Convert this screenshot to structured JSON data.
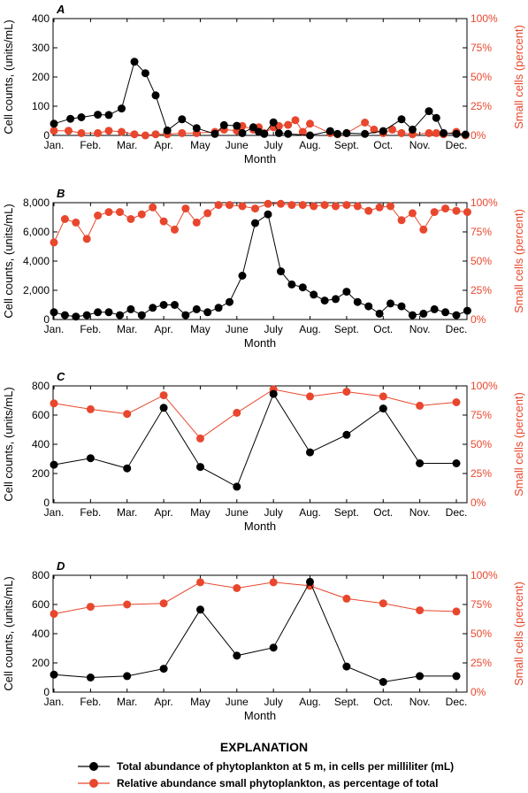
{
  "colors": {
    "total": "#000000",
    "small": "#e8472d"
  },
  "chart_data": [
    {
      "type": "line",
      "panel_label": "A",
      "xlabel": "Month",
      "ylabel_left": "Cell counts, (units/mL)",
      "ylabel_right": "Small cells (percent)",
      "x_ticks": [
        "Jan.",
        "Feb.",
        "Mar.",
        "Apr.",
        "May",
        "June",
        "July",
        "Aug.",
        "Sept.",
        "Oct.",
        "Nov.",
        "Dec."
      ],
      "y_left_ticks": [
        "0",
        "100",
        "200",
        "300",
        "400"
      ],
      "y_right_ticks": [
        "0%",
        "25%",
        "50%",
        "75%",
        "100%"
      ],
      "ylim_left": [
        0,
        400
      ],
      "ylim_right": [
        0,
        100
      ],
      "xlim": [
        0,
        11.3
      ],
      "series": [
        {
          "key": "total",
          "axis": "left",
          "x": [
            0,
            0.45,
            0.75,
            1.2,
            1.5,
            1.85,
            2.2,
            2.5,
            2.78,
            3.1,
            3.5,
            3.9,
            4.4,
            4.65,
            5.0,
            5.15,
            5.45,
            5.6,
            5.75,
            6.0,
            6.15,
            6.4,
            7.0,
            7.55,
            7.75,
            8.0,
            8.5,
            9.0,
            9.5,
            9.8,
            10.25,
            10.45,
            10.65,
            11.0,
            11.25
          ],
          "y": [
            40,
            57,
            62,
            71,
            70,
            92,
            252,
            213,
            137,
            17,
            55,
            25,
            5,
            35,
            33,
            8,
            28,
            12,
            5,
            45,
            8,
            5,
            0,
            15,
            5,
            8,
            5,
            15,
            55,
            20,
            83,
            60,
            8,
            5,
            3
          ]
        },
        {
          "key": "small",
          "axis": "right",
          "x": [
            0,
            0.4,
            0.75,
            1.2,
            1.5,
            1.85,
            2.2,
            2.5,
            2.78,
            3.1,
            3.5,
            3.9,
            4.4,
            4.65,
            5.0,
            5.15,
            5.45,
            5.6,
            5.75,
            6.0,
            6.15,
            6.4,
            6.6,
            6.8,
            7.0,
            7.55,
            7.75,
            8.0,
            8.5,
            8.75,
            9.0,
            9.25,
            9.5,
            9.8,
            10.25,
            10.45,
            10.65,
            11.0,
            11.25
          ],
          "y": [
            4,
            4,
            2,
            2,
            4,
            3,
            1,
            0,
            1,
            1,
            2,
            2,
            3,
            5,
            4,
            8,
            5,
            7,
            2,
            7,
            8,
            9,
            13,
            3,
            10,
            2,
            1,
            2,
            11,
            5,
            2,
            5,
            2,
            1,
            2,
            2,
            1,
            3,
            0
          ]
        }
      ]
    },
    {
      "type": "line",
      "panel_label": "B",
      "xlabel": "Month",
      "ylabel_left": "Cell counts, (units/mL)",
      "ylabel_right": "Small cells (percent)",
      "x_ticks": [
        "Jan.",
        "Feb.",
        "Mar.",
        "Apr.",
        "May",
        "June",
        "July",
        "Aug.",
        "Sept.",
        "Oct.",
        "Nov.",
        "Dec."
      ],
      "y_left_ticks": [
        "0",
        "2,000",
        "4,000",
        "6,000",
        "8,000"
      ],
      "y_right_ticks": [
        "0%",
        "25%",
        "50%",
        "75%",
        "100%"
      ],
      "ylim_left": [
        0,
        8000
      ],
      "ylim_right": [
        0,
        100
      ],
      "xlim": [
        0,
        11.3
      ],
      "series": [
        {
          "key": "total",
          "axis": "left",
          "x": [
            0,
            0.3,
            0.6,
            0.9,
            1.2,
            1.5,
            1.8,
            2.1,
            2.4,
            2.7,
            3.0,
            3.3,
            3.6,
            3.9,
            4.2,
            4.5,
            4.8,
            5.15,
            5.5,
            5.85,
            6.2,
            6.5,
            6.8,
            7.1,
            7.4,
            7.7,
            8.0,
            8.3,
            8.6,
            8.9,
            9.2,
            9.5,
            9.8,
            10.1,
            10.4,
            10.7,
            11.0,
            11.3
          ],
          "y": [
            500,
            300,
            200,
            300,
            500,
            500,
            300,
            700,
            300,
            800,
            1000,
            1000,
            300,
            700,
            500,
            800,
            1200,
            3000,
            6600,
            7200,
            3300,
            2400,
            2200,
            1700,
            1300,
            1400,
            1900,
            1200,
            900,
            400,
            1100,
            900,
            300,
            400,
            700,
            500,
            300,
            600
          ]
        },
        {
          "key": "small",
          "axis": "right",
          "x": [
            0,
            0.3,
            0.6,
            0.9,
            1.2,
            1.5,
            1.8,
            2.1,
            2.4,
            2.7,
            3.0,
            3.3,
            3.6,
            3.9,
            4.2,
            4.5,
            4.8,
            5.15,
            5.5,
            5.85,
            6.2,
            6.5,
            6.8,
            7.1,
            7.4,
            7.7,
            8.0,
            8.3,
            8.6,
            8.9,
            9.2,
            9.5,
            9.8,
            10.1,
            10.4,
            10.7,
            11.0,
            11.3
          ],
          "y": [
            66,
            86,
            83,
            69,
            89,
            92,
            92,
            86,
            90,
            96,
            84,
            77,
            95,
            83,
            91,
            98,
            98,
            97,
            95,
            99,
            99,
            98,
            98,
            97,
            98,
            97,
            98,
            97,
            93,
            96,
            97,
            85,
            91,
            77,
            92,
            95,
            93,
            92
          ]
        }
      ]
    },
    {
      "type": "line",
      "panel_label": "C",
      "xlabel": "Month",
      "ylabel_left": "Cell counts, (units/mL)",
      "ylabel_right": "Small cells (percent)",
      "x_ticks": [
        "Jan.",
        "Feb.",
        "Mar.",
        "Apr.",
        "May",
        "June",
        "July",
        "Aug.",
        "Sept.",
        "Oct.",
        "Nov.",
        "Dec."
      ],
      "y_left_ticks": [
        "0",
        "200",
        "400",
        "600",
        "800"
      ],
      "y_right_ticks": [
        "0%",
        "25%",
        "50%",
        "75%",
        "100%"
      ],
      "ylim_left": [
        0,
        800
      ],
      "ylim_right": [
        0,
        100
      ],
      "xlim": [
        0,
        11.3
      ],
      "series": [
        {
          "key": "total",
          "axis": "left",
          "x": [
            0,
            1,
            2,
            3,
            4,
            5,
            6,
            7,
            8,
            9,
            10,
            11
          ],
          "y": [
            260,
            305,
            235,
            650,
            245,
            110,
            745,
            345,
            465,
            645,
            270,
            270
          ]
        },
        {
          "key": "small",
          "axis": "right",
          "x": [
            0,
            1,
            2,
            3,
            4,
            5,
            6,
            7,
            8,
            9,
            10,
            11
          ],
          "y": [
            85,
            80,
            76,
            92,
            55,
            77,
            97,
            91,
            95,
            91,
            83,
            86
          ]
        }
      ]
    },
    {
      "type": "line",
      "panel_label": "D",
      "xlabel": "Month",
      "ylabel_left": "Cell counts, (units/mL)",
      "ylabel_right": "Small cells (percent)",
      "x_ticks": [
        "Jan.",
        "Feb.",
        "Mar.",
        "Apr.",
        "May",
        "June",
        "July",
        "Aug.",
        "Sept.",
        "Oct.",
        "Nov.",
        "Dec."
      ],
      "y_left_ticks": [
        "0",
        "200",
        "400",
        "600",
        "800"
      ],
      "y_right_ticks": [
        "0%",
        "25%",
        "50%",
        "75%",
        "100%"
      ],
      "ylim_left": [
        0,
        800
      ],
      "ylim_right": [
        0,
        100
      ],
      "xlim": [
        0,
        11.3
      ],
      "series": [
        {
          "key": "total",
          "axis": "left",
          "x": [
            0,
            1,
            2,
            3,
            4,
            5,
            6,
            7,
            8,
            9,
            10,
            11
          ],
          "y": [
            120,
            100,
            110,
            160,
            565,
            250,
            305,
            755,
            175,
            70,
            110,
            110
          ]
        },
        {
          "key": "small",
          "axis": "right",
          "x": [
            0,
            1,
            2,
            3,
            4,
            5,
            6,
            7,
            8,
            9,
            10,
            11
          ],
          "y": [
            67,
            73,
            75,
            76,
            94,
            89,
            94,
            91,
            80,
            76,
            70,
            69
          ]
        }
      ]
    }
  ],
  "legend": {
    "title": "EXPLANATION",
    "items": [
      {
        "key": "total",
        "label": "Total abundance of phytoplankton at 5 m, in cells per milliliter (mL)"
      },
      {
        "key": "small",
        "label": "Relative abundance small phytoplankton, as percentage of total"
      }
    ]
  }
}
